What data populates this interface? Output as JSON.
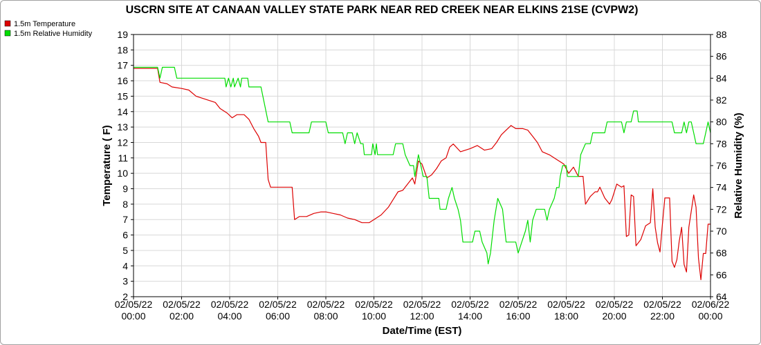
{
  "chart_data": {
    "type": "line",
    "title": "USCRN SITE AT CANAAN VALLEY STATE PARK NEAR RED CREEK NEAR ELKINS 21SE (CVPW2)",
    "xlabel": "Date/Time (EST)",
    "ylabel_left": "Temperature ( F)",
    "ylabel_right": "Relative Humidity (%)",
    "ylim_left": [
      2,
      19
    ],
    "ylim_right": [
      64,
      88
    ],
    "xlim_hours": [
      0,
      24
    ],
    "grid": true,
    "legend_position": "top-left",
    "x_ticks": [
      {
        "hour": 0,
        "date": "02/05/22",
        "time": "00:00"
      },
      {
        "hour": 2,
        "date": "02/05/22",
        "time": "02:00"
      },
      {
        "hour": 4,
        "date": "02/05/22",
        "time": "04:00"
      },
      {
        "hour": 6,
        "date": "02/05/22",
        "time": "06:00"
      },
      {
        "hour": 8,
        "date": "02/05/22",
        "time": "08:00"
      },
      {
        "hour": 10,
        "date": "02/05/22",
        "time": "10:00"
      },
      {
        "hour": 12,
        "date": "02/05/22",
        "time": "12:00"
      },
      {
        "hour": 14,
        "date": "02/05/22",
        "time": "14:00"
      },
      {
        "hour": 16,
        "date": "02/05/22",
        "time": "16:00"
      },
      {
        "hour": 18,
        "date": "02/05/22",
        "time": "18:00"
      },
      {
        "hour": 20,
        "date": "02/05/22",
        "time": "20:00"
      },
      {
        "hour": 22,
        "date": "02/05/22",
        "time": "22:00"
      },
      {
        "hour": 24,
        "date": "02/06/22",
        "time": "00:00"
      }
    ],
    "y_left_ticks": [
      2,
      3,
      4,
      5,
      6,
      7,
      8,
      9,
      10,
      11,
      12,
      13,
      14,
      15,
      16,
      17,
      18,
      19
    ],
    "y_right_ticks": [
      64,
      66,
      68,
      70,
      72,
      74,
      76,
      78,
      80,
      82,
      84,
      86,
      88
    ],
    "series": [
      {
        "name": "1.5m Temperature",
        "axis": "left",
        "color": "#dd0000",
        "points": [
          [
            0,
            16.8
          ],
          [
            0.5,
            16.8
          ],
          [
            1.0,
            16.8
          ],
          [
            1.1,
            15.9
          ],
          [
            1.4,
            15.8
          ],
          [
            1.6,
            15.6
          ],
          [
            2.0,
            15.5
          ],
          [
            2.3,
            15.4
          ],
          [
            2.6,
            15.0
          ],
          [
            3.0,
            14.8
          ],
          [
            3.4,
            14.6
          ],
          [
            3.6,
            14.2
          ],
          [
            3.9,
            13.9
          ],
          [
            4.1,
            13.6
          ],
          [
            4.3,
            13.8
          ],
          [
            4.6,
            13.8
          ],
          [
            4.8,
            13.5
          ],
          [
            5.0,
            12.9
          ],
          [
            5.2,
            12.4
          ],
          [
            5.3,
            12.0
          ],
          [
            5.5,
            12.0
          ],
          [
            5.6,
            9.6
          ],
          [
            5.7,
            9.1
          ],
          [
            6.3,
            9.1
          ],
          [
            6.6,
            9.1
          ],
          [
            6.7,
            7.0
          ],
          [
            6.9,
            7.2
          ],
          [
            7.2,
            7.2
          ],
          [
            7.5,
            7.4
          ],
          [
            7.8,
            7.5
          ],
          [
            8.0,
            7.5
          ],
          [
            8.3,
            7.4
          ],
          [
            8.6,
            7.3
          ],
          [
            8.9,
            7.1
          ],
          [
            9.2,
            7.0
          ],
          [
            9.5,
            6.8
          ],
          [
            9.8,
            6.8
          ],
          [
            10.1,
            7.1
          ],
          [
            10.3,
            7.3
          ],
          [
            10.6,
            7.8
          ],
          [
            10.8,
            8.3
          ],
          [
            11.0,
            8.8
          ],
          [
            11.2,
            8.9
          ],
          [
            11.4,
            9.3
          ],
          [
            11.6,
            9.7
          ],
          [
            11.7,
            9.3
          ],
          [
            11.85,
            10.8
          ],
          [
            12.0,
            10.6
          ],
          [
            12.2,
            9.7
          ],
          [
            12.4,
            9.9
          ],
          [
            12.6,
            10.3
          ],
          [
            12.8,
            10.8
          ],
          [
            13.0,
            11.0
          ],
          [
            13.15,
            11.7
          ],
          [
            13.3,
            11.9
          ],
          [
            13.6,
            11.4
          ],
          [
            14.0,
            11.6
          ],
          [
            14.3,
            11.8
          ],
          [
            14.6,
            11.5
          ],
          [
            14.9,
            11.6
          ],
          [
            15.1,
            12.0
          ],
          [
            15.3,
            12.5
          ],
          [
            15.5,
            12.8
          ],
          [
            15.7,
            13.1
          ],
          [
            15.9,
            12.9
          ],
          [
            16.2,
            12.9
          ],
          [
            16.4,
            12.8
          ],
          [
            16.6,
            12.4
          ],
          [
            16.8,
            12.0
          ],
          [
            17.0,
            11.4
          ],
          [
            17.3,
            11.2
          ],
          [
            17.6,
            10.9
          ],
          [
            17.9,
            10.6
          ],
          [
            18.1,
            10.0
          ],
          [
            18.3,
            10.4
          ],
          [
            18.5,
            9.8
          ],
          [
            18.7,
            9.8
          ],
          [
            18.8,
            8.0
          ],
          [
            19.0,
            8.5
          ],
          [
            19.2,
            8.8
          ],
          [
            19.3,
            8.8
          ],
          [
            19.4,
            9.1
          ],
          [
            19.6,
            8.4
          ],
          [
            19.8,
            8.0
          ],
          [
            19.9,
            8.3
          ],
          [
            20.1,
            9.3
          ],
          [
            20.3,
            9.1
          ],
          [
            20.4,
            9.2
          ],
          [
            20.5,
            5.9
          ],
          [
            20.6,
            6.0
          ],
          [
            20.7,
            8.6
          ],
          [
            20.8,
            8.5
          ],
          [
            20.9,
            5.3
          ],
          [
            21.1,
            5.7
          ],
          [
            21.3,
            6.6
          ],
          [
            21.5,
            6.8
          ],
          [
            21.6,
            9.0
          ],
          [
            21.7,
            6.5
          ],
          [
            21.8,
            5.5
          ],
          [
            21.9,
            4.9
          ],
          [
            22.0,
            6.7
          ],
          [
            22.1,
            8.4
          ],
          [
            22.3,
            8.4
          ],
          [
            22.4,
            4.3
          ],
          [
            22.5,
            3.9
          ],
          [
            22.6,
            4.4
          ],
          [
            22.7,
            5.6
          ],
          [
            22.8,
            6.5
          ],
          [
            22.9,
            4.1
          ],
          [
            23.0,
            3.6
          ],
          [
            23.1,
            6.5
          ],
          [
            23.3,
            8.6
          ],
          [
            23.4,
            7.8
          ],
          [
            23.5,
            4.5
          ],
          [
            23.6,
            3.1
          ],
          [
            23.7,
            4.8
          ],
          [
            23.8,
            4.8
          ],
          [
            23.9,
            6.7
          ],
          [
            24.0,
            6.7
          ]
        ]
      },
      {
        "name": "1.5m Relative Humidity",
        "axis": "right",
        "color": "#00dd00",
        "points": [
          [
            0,
            85
          ],
          [
            1.0,
            85
          ],
          [
            1.1,
            84
          ],
          [
            1.2,
            85
          ],
          [
            1.7,
            85
          ],
          [
            1.8,
            84
          ],
          [
            3.8,
            84
          ],
          [
            3.85,
            83.2
          ],
          [
            3.95,
            84
          ],
          [
            4.05,
            83.2
          ],
          [
            4.15,
            84
          ],
          [
            4.2,
            83.2
          ],
          [
            4.35,
            84
          ],
          [
            4.45,
            83.2
          ],
          [
            4.5,
            84
          ],
          [
            4.75,
            84
          ],
          [
            4.8,
            83.2
          ],
          [
            5.2,
            83.2
          ],
          [
            5.3,
            83.2
          ],
          [
            5.6,
            80
          ],
          [
            6.5,
            80
          ],
          [
            6.6,
            79
          ],
          [
            7.3,
            79
          ],
          [
            7.4,
            80
          ],
          [
            8.0,
            80
          ],
          [
            8.1,
            79
          ],
          [
            8.7,
            79
          ],
          [
            8.8,
            78
          ],
          [
            8.9,
            79
          ],
          [
            9.1,
            79
          ],
          [
            9.2,
            78
          ],
          [
            9.3,
            79
          ],
          [
            9.45,
            78
          ],
          [
            9.55,
            78
          ],
          [
            9.6,
            77
          ],
          [
            9.9,
            77
          ],
          [
            9.95,
            78
          ],
          [
            10.05,
            77
          ],
          [
            10.1,
            78
          ],
          [
            10.15,
            77
          ],
          [
            10.8,
            77
          ],
          [
            10.9,
            78
          ],
          [
            11.2,
            78
          ],
          [
            11.3,
            77
          ],
          [
            11.5,
            76
          ],
          [
            11.65,
            76
          ],
          [
            11.7,
            75
          ],
          [
            11.85,
            77
          ],
          [
            11.95,
            76
          ],
          [
            12.05,
            75
          ],
          [
            12.2,
            75
          ],
          [
            12.3,
            73
          ],
          [
            12.7,
            73
          ],
          [
            12.75,
            72
          ],
          [
            13.0,
            72
          ],
          [
            13.1,
            73
          ],
          [
            13.25,
            74
          ],
          [
            13.35,
            73
          ],
          [
            13.5,
            72
          ],
          [
            13.6,
            71
          ],
          [
            13.7,
            69
          ],
          [
            14.1,
            69
          ],
          [
            14.2,
            70
          ],
          [
            14.4,
            70
          ],
          [
            14.5,
            69
          ],
          [
            14.7,
            68
          ],
          [
            14.75,
            67
          ],
          [
            14.85,
            68
          ],
          [
            15.0,
            71
          ],
          [
            15.15,
            73
          ],
          [
            15.35,
            72
          ],
          [
            15.5,
            69
          ],
          [
            15.9,
            69
          ],
          [
            16.0,
            68
          ],
          [
            16.15,
            69
          ],
          [
            16.3,
            70
          ],
          [
            16.4,
            71
          ],
          [
            16.5,
            69
          ],
          [
            16.6,
            71
          ],
          [
            16.75,
            72
          ],
          [
            17.1,
            72
          ],
          [
            17.2,
            71
          ],
          [
            17.3,
            72
          ],
          [
            17.5,
            73
          ],
          [
            17.6,
            74
          ],
          [
            17.7,
            74
          ],
          [
            17.75,
            75
          ],
          [
            17.85,
            76
          ],
          [
            18.0,
            76
          ],
          [
            18.05,
            75
          ],
          [
            18.1,
            75
          ],
          [
            18.5,
            75
          ],
          [
            18.6,
            77
          ],
          [
            18.8,
            78
          ],
          [
            19.0,
            78
          ],
          [
            19.1,
            79
          ],
          [
            19.6,
            79
          ],
          [
            19.7,
            80
          ],
          [
            20.3,
            80
          ],
          [
            20.4,
            79
          ],
          [
            20.5,
            80
          ],
          [
            20.7,
            80
          ],
          [
            20.8,
            81
          ],
          [
            20.95,
            81
          ],
          [
            21.0,
            80
          ],
          [
            21.3,
            80
          ],
          [
            22.4,
            80
          ],
          [
            22.5,
            79
          ],
          [
            22.8,
            79
          ],
          [
            22.9,
            80
          ],
          [
            23.0,
            79
          ],
          [
            23.1,
            80
          ],
          [
            23.2,
            80
          ],
          [
            23.3,
            79
          ],
          [
            23.4,
            78
          ],
          [
            23.7,
            78
          ],
          [
            23.8,
            79
          ],
          [
            23.9,
            80
          ],
          [
            24.0,
            79
          ]
        ]
      }
    ]
  }
}
